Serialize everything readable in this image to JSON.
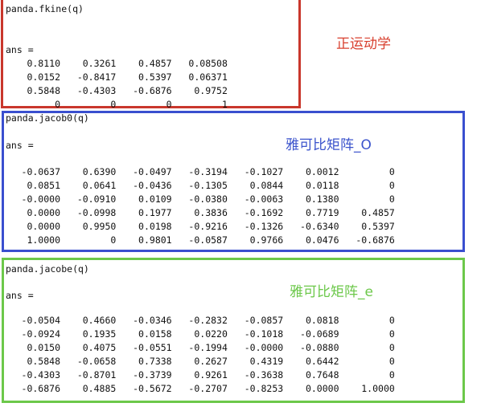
{
  "colors": {
    "fkine_border": "#c9372c",
    "jacob0_border": "#3a4fcf",
    "jacobe_border": "#6cc84a"
  },
  "fkine": {
    "command": "panda.fkine(q)",
    "ans_label": "ans =",
    "annotation": "正运动学",
    "rows": [
      [
        "0.8110",
        "0.3261",
        "0.4857",
        "0.08508"
      ],
      [
        "0.0152",
        "-0.8417",
        "0.5397",
        "0.06371"
      ],
      [
        "0.5848",
        "-0.4303",
        "-0.6876",
        "0.9752"
      ],
      [
        "0",
        "0",
        "0",
        "1"
      ]
    ]
  },
  "jacob0": {
    "command": "panda.jacob0(q)",
    "ans_label": "ans =",
    "annotation": "雅可比矩阵_O",
    "rows": [
      [
        "-0.0637",
        "0.6390",
        "-0.0497",
        "-0.3194",
        "-0.1027",
        "0.0012",
        "0"
      ],
      [
        "0.0851",
        "0.0641",
        "-0.0436",
        "-0.1305",
        "0.0844",
        "0.0118",
        "0"
      ],
      [
        "-0.0000",
        "-0.0910",
        "0.0109",
        "-0.0380",
        "-0.0063",
        "0.1380",
        "0"
      ],
      [
        "0.0000",
        "-0.0998",
        "0.1977",
        "0.3836",
        "-0.1692",
        "0.7719",
        "0.4857"
      ],
      [
        "0.0000",
        "0.9950",
        "0.0198",
        "-0.9216",
        "-0.1326",
        "-0.6340",
        "0.5397"
      ],
      [
        "1.0000",
        "0",
        "0.9801",
        "-0.0587",
        "0.9766",
        "0.0476",
        "-0.6876"
      ]
    ]
  },
  "jacobe": {
    "command": "panda.jacobe(q)",
    "ans_label": "ans =",
    "annotation": "雅可比矩阵_e",
    "rows": [
      [
        "-0.0504",
        "0.4660",
        "-0.0346",
        "-0.2832",
        "-0.0857",
        "0.0818",
        "0"
      ],
      [
        "-0.0924",
        "0.1935",
        "0.0158",
        "0.0220",
        "-0.1018",
        "-0.0689",
        "0"
      ],
      [
        "0.0150",
        "0.4075",
        "-0.0551",
        "-0.1994",
        "-0.0000",
        "-0.0880",
        "0"
      ],
      [
        "0.5848",
        "-0.0658",
        "0.7338",
        "0.2627",
        "0.4319",
        "0.6442",
        "0"
      ],
      [
        "-0.4303",
        "-0.8701",
        "-0.3739",
        "0.9261",
        "-0.3638",
        "0.7648",
        "0"
      ],
      [
        "-0.6876",
        "0.4885",
        "-0.5672",
        "-0.2707",
        "-0.8253",
        "0.0000",
        "1.0000"
      ]
    ]
  }
}
